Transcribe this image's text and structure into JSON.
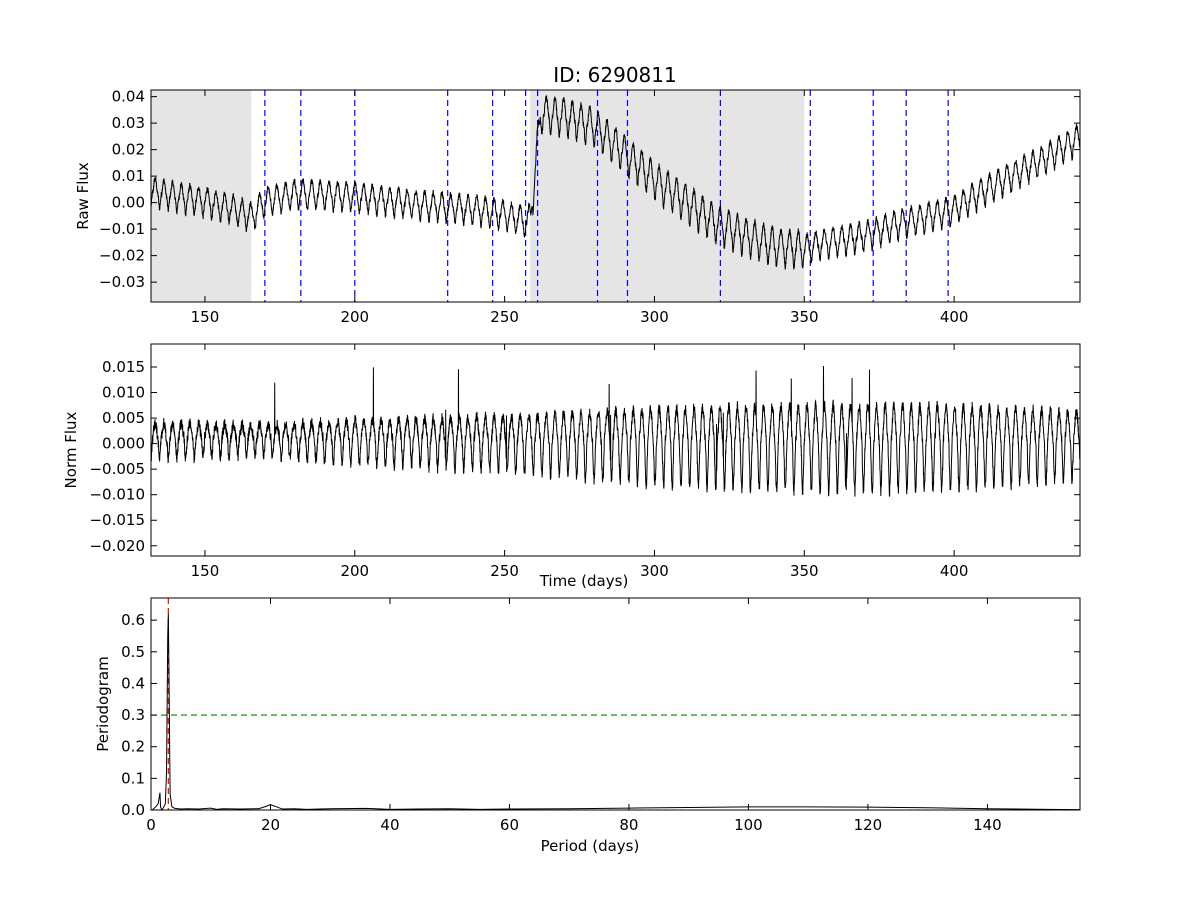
{
  "chart_data": [
    {
      "id": "raw",
      "type": "line",
      "title": "ID: 6290811",
      "xlabel": "",
      "ylabel": "Raw Flux",
      "xlim": [
        132,
        442
      ],
      "ylim": [
        -0.0375,
        0.0425
      ],
      "xticks": [
        150,
        200,
        250,
        300,
        350,
        400
      ],
      "xtick_labels": [
        "150",
        "200",
        "250",
        "300",
        "350",
        "400"
      ],
      "yticks": [
        -0.03,
        -0.02,
        -0.01,
        0.0,
        0.01,
        0.02,
        0.03,
        0.04
      ],
      "ytick_labels": [
        "−0.03",
        "−0.02",
        "−0.01",
        "0.00",
        "0.01",
        "0.02",
        "0.03",
        "0.04"
      ],
      "shaded_spans": [
        [
          132,
          165.5
        ],
        [
          258.5,
          350
        ]
      ],
      "vlines": [
        170,
        182,
        200,
        231,
        246,
        257,
        261,
        281,
        291,
        322,
        352,
        373,
        384,
        398
      ],
      "series": [
        {
          "color": "#000000",
          "trend_x": [
            132,
            140,
            150,
            160,
            165.5,
            170,
            180,
            200,
            220,
            240,
            250,
            258.5,
            262,
            270,
            280,
            290,
            300,
            310,
            320,
            330,
            340,
            350,
            355,
            370,
            380,
            390,
            400,
            410,
            420,
            430,
            442
          ],
          "trend_y": [
            0.004,
            0.002,
            0.0,
            -0.003,
            -0.006,
            0.0,
            0.003,
            0.002,
            -0.001,
            -0.003,
            -0.005,
            -0.008,
            0.033,
            0.032,
            0.028,
            0.018,
            0.008,
            0.0,
            -0.008,
            -0.013,
            -0.017,
            -0.018,
            -0.016,
            -0.013,
            -0.009,
            -0.006,
            -0.003,
            0.004,
            0.01,
            0.016,
            0.024
          ],
          "oscillation_period": 2.9,
          "amplitude": 0.006
        }
      ]
    },
    {
      "id": "norm",
      "type": "line",
      "title": "",
      "xlabel": "Time (days)",
      "ylabel": "Norm Flux",
      "xlim": [
        132,
        442
      ],
      "ylim": [
        -0.022,
        0.0195
      ],
      "xticks": [
        150,
        200,
        250,
        300,
        350,
        400
      ],
      "xtick_labels": [
        "150",
        "200",
        "250",
        "300",
        "350",
        "400"
      ],
      "yticks": [
        -0.02,
        -0.015,
        -0.01,
        -0.005,
        0.0,
        0.005,
        0.01,
        0.015
      ],
      "ytick_labels": [
        "−0.020",
        "−0.015",
        "−0.010",
        "−0.005",
        "0.000",
        "0.005",
        "0.010",
        "0.015"
      ],
      "series": [
        {
          "color": "#000000",
          "oscillation_period": 2.9,
          "amplitude_x": [
            132,
            170,
            200,
            250,
            300,
            330,
            370,
            400,
            442
          ],
          "amplitude_y": [
            0.0045,
            0.004,
            0.0055,
            0.007,
            0.0095,
            0.0105,
            0.011,
            0.0105,
            0.0085
          ]
        }
      ]
    },
    {
      "id": "periodogram",
      "type": "line",
      "title": "",
      "xlabel": "Period (days)",
      "ylabel": "Periodogram",
      "xlim": [
        0,
        155.5
      ],
      "ylim": [
        0.0,
        0.67
      ],
      "xticks": [
        0,
        20,
        40,
        60,
        80,
        100,
        120,
        140
      ],
      "xtick_labels": [
        "0",
        "20",
        "40",
        "60",
        "80",
        "100",
        "120",
        "140"
      ],
      "yticks": [
        0.0,
        0.1,
        0.2,
        0.3,
        0.4,
        0.5,
        0.6
      ],
      "ytick_labels": [
        "0.0",
        "0.1",
        "0.2",
        "0.3",
        "0.4",
        "0.5",
        "0.6"
      ],
      "threshold": {
        "y": 0.3,
        "color": "#008000"
      },
      "best_period": {
        "x": 2.9,
        "color": "#ff0000"
      },
      "series": [
        {
          "color": "#000000",
          "x": [
            0.2,
            0.8,
            1.2,
            1.5,
            1.6,
            1.8,
            2.0,
            2.4,
            2.6,
            2.8,
            2.9,
            3.0,
            3.2,
            3.5,
            4,
            5,
            6,
            8,
            10,
            11,
            12,
            15,
            18,
            19,
            20,
            21,
            22,
            24,
            26,
            30,
            36,
            40,
            45,
            50,
            55,
            60,
            70,
            80,
            90,
            100,
            110,
            120,
            130,
            140,
            150,
            155.5
          ],
          "y": [
            0.0,
            0.01,
            0.02,
            0.055,
            0.01,
            0.0,
            0.005,
            0.02,
            0.12,
            0.55,
            0.62,
            0.45,
            0.05,
            0.01,
            0.005,
            0.003,
            0.004,
            0.003,
            0.006,
            0.002,
            0.004,
            0.003,
            0.004,
            0.01,
            0.017,
            0.01,
            0.003,
            0.004,
            0.002,
            0.004,
            0.005,
            0.002,
            0.003,
            0.004,
            0.002,
            0.003,
            0.004,
            0.006,
            0.008,
            0.01,
            0.01,
            0.009,
            0.007,
            0.004,
            0.002,
            0.001
          ]
        }
      ]
    }
  ]
}
